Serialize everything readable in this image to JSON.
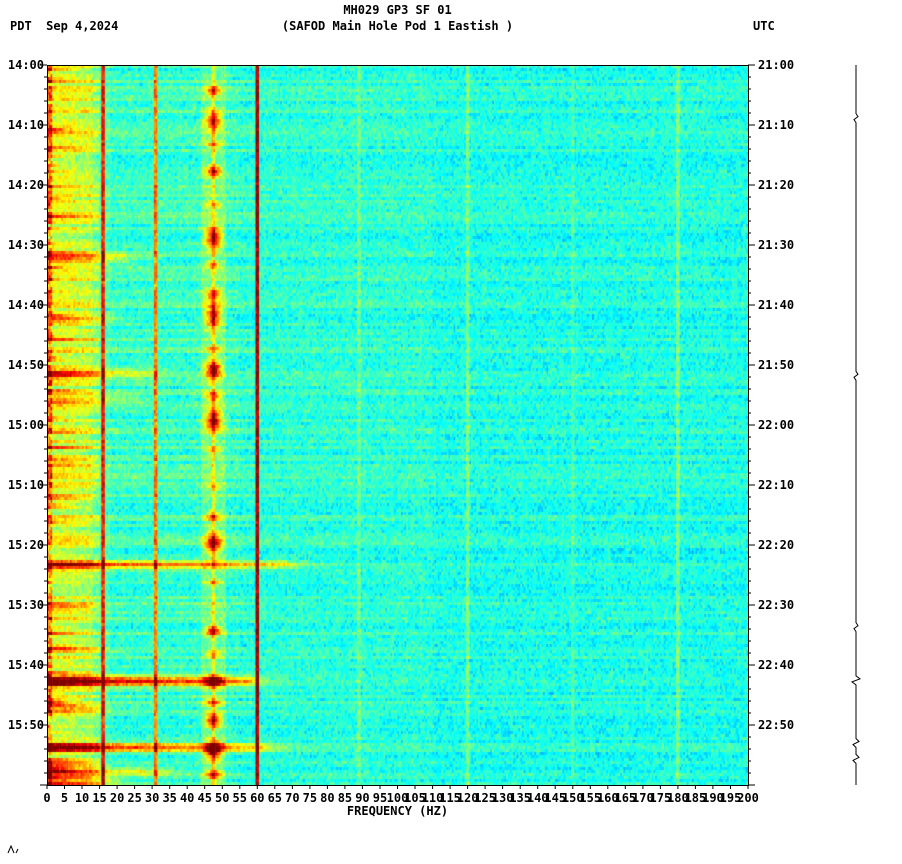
{
  "header": {
    "title": "MH029 GP3 SF 01",
    "subtitle": "(SAFOD Main Hole Pod 1 Eastish )",
    "left_label": "PDT  Sep 4,2024",
    "right_label": "UTC"
  },
  "chart_data": {
    "type": "heatmap",
    "title": "MH029 GP3 SF 01",
    "subtitle": "(SAFOD Main Hole Pod 1 Eastish )",
    "xlabel": "FREQUENCY (HZ)",
    "ylabel": "",
    "colormap": "jet",
    "x_range": [
      0,
      200
    ],
    "x_tick_step": 5,
    "x_tick_labels": [
      "0",
      "5",
      "10",
      "15",
      "20",
      "25",
      "30",
      "35",
      "40",
      "45",
      "50",
      "55",
      "60",
      "65",
      "70",
      "75",
      "80",
      "85",
      "90",
      "95",
      "100",
      "105",
      "110",
      "115",
      "120",
      "125",
      "130",
      "135",
      "140",
      "145",
      "150",
      "155",
      "160",
      "165",
      "170",
      "175",
      "180",
      "185",
      "190",
      "195",
      "200"
    ],
    "time_axis": {
      "left_timezone": "PDT",
      "right_timezone": "UTC",
      "date": "Sep 4,2024",
      "minutes_total": 120,
      "major_tick_minutes": 10,
      "minor_tick_minutes": 2,
      "left_tick_labels": [
        "14:00",
        "14:10",
        "14:20",
        "14:30",
        "14:40",
        "14:50",
        "15:00",
        "15:10",
        "15:20",
        "15:30",
        "15:40",
        "15:50"
      ],
      "right_tick_labels": [
        "21:00",
        "21:10",
        "21:20",
        "21:30",
        "21:40",
        "21:50",
        "22:00",
        "22:10",
        "22:20",
        "22:30",
        "22:40",
        "22:50"
      ]
    },
    "seed": 1337,
    "background_noise": 0.085,
    "freq_profile": [
      {
        "f_max": 1.5,
        "level": 0.7
      },
      {
        "f_max": 8,
        "level": 0.6
      },
      {
        "f_max": 13,
        "level": 0.575
      },
      {
        "f_max": 15,
        "level": 0.525
      },
      {
        "f_max": 18,
        "level": 0.46
      },
      {
        "f_max": 55,
        "level": 0.432
      },
      {
        "f_max": 110,
        "level": 0.418
      },
      {
        "f_max": 300,
        "level": 0.402
      }
    ],
    "vertical_lines": [
      {
        "f": 16,
        "amp": 0.4,
        "width_hz": 0.8
      },
      {
        "f": 31,
        "amp": 0.32,
        "width_hz": 0.8
      },
      {
        "f": 47.5,
        "amp": 0.06,
        "width_hz": 7
      },
      {
        "f": 47.5,
        "amp": 0.12,
        "width_hz": 1.4
      },
      {
        "f": 60,
        "amp": 0.55,
        "width_hz": 1.4
      },
      {
        "f": 89,
        "amp": 0.07,
        "width_hz": 0.9
      },
      {
        "f": 120,
        "amp": 0.09,
        "width_hz": 0.9
      },
      {
        "f": 150,
        "amp": 0.05,
        "width_hz": 0.9
      },
      {
        "f": 180,
        "amp": 0.1,
        "width_hz": 0.9
      }
    ],
    "band_center_hz": 47.5,
    "band_sigma_hz": 2.2,
    "band_events": [
      {
        "t": 4,
        "dur": 1.5,
        "amp": 0.3
      },
      {
        "t": 9,
        "dur": 2.5,
        "amp": 0.38
      },
      {
        "t": 13,
        "dur": 1,
        "amp": 0.2
      },
      {
        "t": 17.5,
        "dur": 1.5,
        "amp": 0.4
      },
      {
        "t": 23,
        "dur": 1,
        "amp": 0.18
      },
      {
        "t": 28.5,
        "dur": 3,
        "amp": 0.45
      },
      {
        "t": 33,
        "dur": 1,
        "amp": 0.25
      },
      {
        "t": 38,
        "dur": 1.5,
        "amp": 0.3
      },
      {
        "t": 41.5,
        "dur": 3.5,
        "amp": 0.42
      },
      {
        "t": 47,
        "dur": 1,
        "amp": 0.2
      },
      {
        "t": 50.5,
        "dur": 2.5,
        "amp": 0.48
      },
      {
        "t": 55,
        "dur": 1.5,
        "amp": 0.3
      },
      {
        "t": 59,
        "dur": 3,
        "amp": 0.46
      },
      {
        "t": 64,
        "dur": 1,
        "amp": 0.2
      },
      {
        "t": 70,
        "dur": 1,
        "amp": 0.15
      },
      {
        "t": 75,
        "dur": 1.5,
        "amp": 0.25
      },
      {
        "t": 79.5,
        "dur": 3,
        "amp": 0.44
      },
      {
        "t": 86,
        "dur": 1,
        "amp": 0.2
      },
      {
        "t": 94,
        "dur": 1.5,
        "amp": 0.4
      },
      {
        "t": 98,
        "dur": 1,
        "amp": 0.2
      },
      {
        "t": 102.5,
        "dur": 1.5,
        "amp": 0.5
      },
      {
        "t": 106,
        "dur": 1,
        "amp": 0.3
      },
      {
        "t": 109,
        "dur": 2,
        "amp": 0.42
      },
      {
        "t": 114,
        "dur": 2.5,
        "amp": 0.55
      },
      {
        "t": 118,
        "dur": 1.5,
        "amp": 0.35
      }
    ],
    "broadband_events": [
      {
        "t": 32,
        "dur": 1.5,
        "fmax": 22,
        "amp": 0.3
      },
      {
        "t": 42,
        "dur": 1.2,
        "fmax": 18,
        "amp": 0.26
      },
      {
        "t": 51,
        "dur": 1.5,
        "fmax": 30,
        "amp": 0.22
      },
      {
        "t": 55.5,
        "dur": 1.2,
        "fmax": 26,
        "amp": 0.2
      },
      {
        "t": 66,
        "dur": 1,
        "fmax": 12,
        "amp": 0.18
      },
      {
        "t": 83,
        "dur": 1.2,
        "fmax": 68,
        "amp": 0.4
      },
      {
        "t": 90,
        "dur": 1,
        "fmax": 12,
        "amp": 0.22
      },
      {
        "t": 97,
        "dur": 1,
        "fmax": 14,
        "amp": 0.2
      },
      {
        "t": 102.5,
        "dur": 1.4,
        "fmax": 58,
        "amp": 0.55
      },
      {
        "t": 107,
        "dur": 1,
        "fmax": 16,
        "amp": 0.2
      },
      {
        "t": 113.5,
        "dur": 1.3,
        "fmax": 62,
        "amp": 0.42
      },
      {
        "t": 117.5,
        "dur": 1.2,
        "fmax": 34,
        "amp": 0.3
      },
      {
        "t": 119,
        "dur": 1,
        "fmax": 20,
        "amp": 0.25
      }
    ]
  },
  "side_trace": {
    "spikes": [
      {
        "pos": 0.073,
        "amp": 2
      },
      {
        "pos": 0.431,
        "amp": 2
      },
      {
        "pos": 0.78,
        "amp": 2
      },
      {
        "pos": 0.854,
        "amp": 4
      },
      {
        "pos": 0.941,
        "amp": 3
      },
      {
        "pos": 0.963,
        "amp": 3
      }
    ]
  }
}
